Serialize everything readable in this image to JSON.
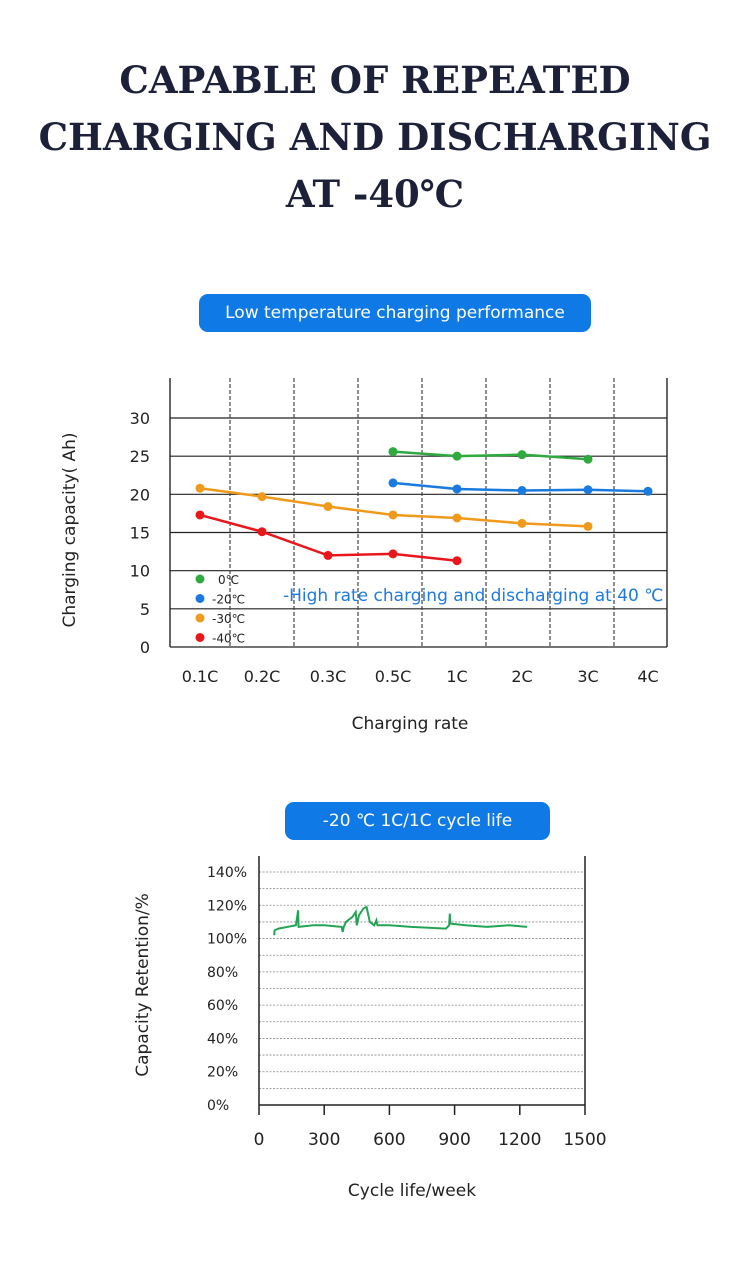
{
  "header": {
    "lines": [
      "CAPABLE OF REPEATED",
      "CHARGING AND DISCHARGING",
      "AT -40℃"
    ]
  },
  "chart_data": [
    {
      "type": "line",
      "title": "Low temperature charging performance",
      "xlabel": "Charging rate",
      "ylabel": "Charging capacity( Ah)",
      "categories": [
        "0.1C",
        "0.2C",
        "0.3C",
        "0.5C",
        "1C",
        "2C",
        "3C",
        "4C"
      ],
      "yticks": [
        "30",
        "25",
        "20",
        "15",
        "10",
        "5",
        "0"
      ],
      "ylim": [
        0,
        30
      ],
      "grid": true,
      "legend_position": "bottom-left",
      "annotation": "-High rate charging and discharging at 40 ℃",
      "annotation_color": "#1f7ae0",
      "series": [
        {
          "name": "0℃",
          "color": "#2eaa3e",
          "x": [
            "0.5C",
            "1C",
            "2C",
            "3C"
          ],
          "values": [
            25.6,
            25.0,
            25.2,
            24.6
          ]
        },
        {
          "name": "-20℃",
          "color": "#1a7ae0",
          "x": [
            "0.5C",
            "1C",
            "2C",
            "3C",
            "4C"
          ],
          "values": [
            21.5,
            20.7,
            20.5,
            20.6,
            20.4
          ]
        },
        {
          "name": "-30℃",
          "color": "#f09a1c",
          "x": [
            "0.1C",
            "0.2C",
            "0.3C",
            "0.5C",
            "1C",
            "2C",
            "3C"
          ],
          "values": [
            20.8,
            19.7,
            18.4,
            17.3,
            16.9,
            16.2,
            15.8
          ]
        },
        {
          "name": "-40℃",
          "color": "#e8171b",
          "x": [
            "0.1C",
            "0.2C",
            "0.3C",
            "0.5C",
            "1C"
          ],
          "values": [
            17.3,
            15.1,
            12.0,
            12.2,
            11.3
          ]
        }
      ]
    },
    {
      "type": "line",
      "title": "-20 ℃ 1C/1C cycle life",
      "xlabel": "Cycle life/week",
      "ylabel": "Capacity Retention/%",
      "xticks": [
        "0",
        "300",
        "600",
        "900",
        "1200",
        "1500"
      ],
      "yticks": [
        "140%",
        "120%",
        "100%",
        "80%",
        "60%",
        "40%",
        "20%",
        "0%"
      ],
      "xlim": [
        0,
        1500
      ],
      "ylim": [
        0,
        140
      ],
      "grid": true,
      "series": [
        {
          "color": "#23a455",
          "points": [
            [
              70,
              102
            ],
            [
              72,
              105
            ],
            [
              90,
              106
            ],
            [
              130,
              107
            ],
            [
              170,
              108
            ],
            [
              180,
              117
            ],
            [
              182,
              107
            ],
            [
              250,
              108
            ],
            [
              300,
              108
            ],
            [
              380,
              107
            ],
            [
              385,
              104
            ],
            [
              390,
              107
            ],
            [
              400,
              110
            ],
            [
              430,
              113
            ],
            [
              445,
              116
            ],
            [
              450,
              108
            ],
            [
              460,
              114
            ],
            [
              480,
              118
            ],
            [
              495,
              119
            ],
            [
              510,
              110
            ],
            [
              530,
              108
            ],
            [
              540,
              111
            ],
            [
              545,
              108
            ],
            [
              600,
              108
            ],
            [
              700,
              107
            ],
            [
              860,
              106
            ],
            [
              875,
              108
            ],
            [
              878,
              115
            ],
            [
              880,
              109
            ],
            [
              950,
              108
            ],
            [
              1050,
              107
            ],
            [
              1150,
              108
            ],
            [
              1233,
              107
            ]
          ]
        }
      ]
    }
  ]
}
